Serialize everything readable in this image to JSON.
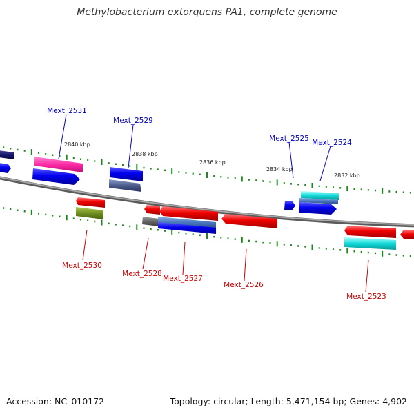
{
  "title": "Methylobacterium extorquens PA1, complete genome",
  "footer": {
    "accession": "Accession: NC_010172",
    "topology": "Topology: circular; Length: 5,471,154 bp; Genes: 4,902"
  },
  "ruler": [
    "2840 kbp",
    "2838 kbp",
    "2836 kbp",
    "2834 kbp",
    "2832 kbp"
  ],
  "genes": {
    "mext_2531": "Mext_2531",
    "mext_2529": "Mext_2529",
    "mext_2525": "Mext_2525",
    "mext_2524": "Mext_2524",
    "mext_2530": "Mext_2530",
    "mext_2528": "Mext_2528",
    "mext_2527": "Mext_2527",
    "mext_2526": "Mext_2526",
    "mext_2523": "Mext_2523"
  },
  "colors": {
    "forward_label": "#0000bb",
    "reverse_label": "#cc0000",
    "backbone": "#8a8a8a",
    "tick": "#1a8a1a"
  }
}
